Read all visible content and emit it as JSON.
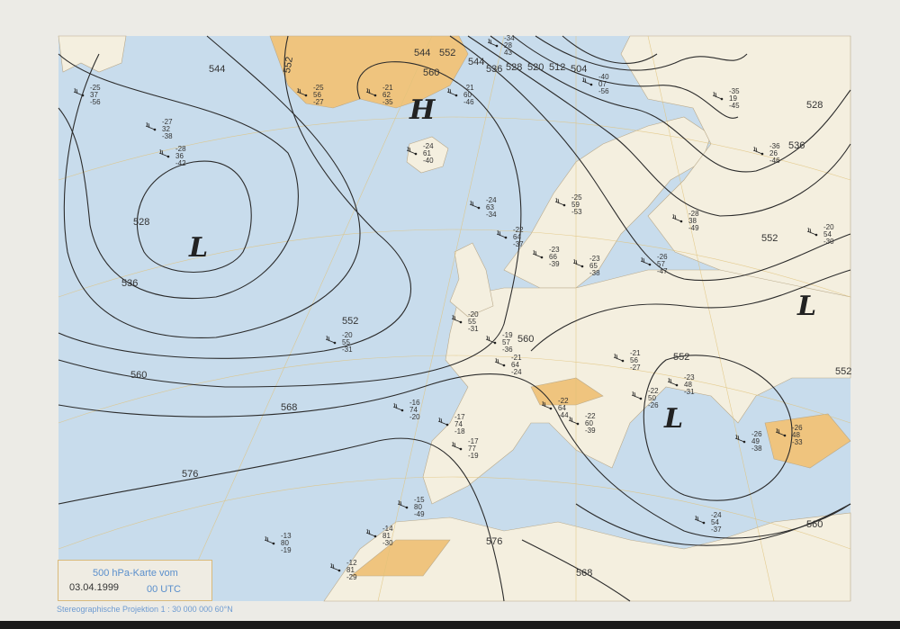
{
  "legend": {
    "title": "500 hPa-Karte vom",
    "date": "03.04.1999",
    "time": "00 UTC"
  },
  "projection": "Stereographische Projektion   1 : 30 000 000  60°N",
  "colors": {
    "sea": "#c8dcec",
    "land": "#f4efdf",
    "highland": "#efc47e",
    "contour": "#2b2b2b",
    "graticule": "#e0c27a"
  },
  "pressure_centers": [
    {
      "label": "H",
      "region": "Greenland"
    },
    {
      "label": "L",
      "region": "North Atlantic"
    },
    {
      "label": "L",
      "region": "Balkans"
    },
    {
      "label": "L",
      "region": "Southern Russia"
    }
  ],
  "contour_labels": [
    "552",
    "544",
    "560",
    "552",
    "544",
    "536",
    "528",
    "520",
    "512",
    "504",
    "528",
    "536",
    "544",
    "552",
    "560",
    "568",
    "576",
    "560",
    "552",
    "568",
    "576",
    "560",
    "552",
    "528",
    "536",
    "552"
  ],
  "stations": [
    {
      "t": "-25",
      "td": "56",
      "h": "-27"
    },
    {
      "t": "-21",
      "td": "62",
      "h": "-35"
    },
    {
      "t": "-21",
      "td": "60",
      "h": "-46"
    },
    {
      "t": "-34",
      "td": "28",
      "h": "43"
    },
    {
      "t": "-40",
      "td": "07",
      "h": "-56"
    },
    {
      "t": "-24",
      "td": "61",
      "h": "-40"
    },
    {
      "t": "-24",
      "td": "63",
      "h": "-34"
    },
    {
      "t": "-22",
      "td": "64",
      "h": "-37"
    },
    {
      "t": "-25",
      "td": "59",
      "h": "-53"
    },
    {
      "t": "-23",
      "td": "66",
      "h": "-39"
    },
    {
      "t": "-23",
      "td": "65",
      "h": "-38"
    },
    {
      "t": "-20",
      "td": "55",
      "h": "-31"
    },
    {
      "t": "-19",
      "td": "57",
      "h": "-36"
    },
    {
      "t": "-21",
      "td": "64",
      "h": "-24"
    },
    {
      "t": "-22",
      "td": "64",
      "h": "-44"
    },
    {
      "t": "-16",
      "td": "74",
      "h": "-20"
    },
    {
      "t": "-17",
      "td": "74",
      "h": "-18"
    },
    {
      "t": "-17",
      "td": "77",
      "h": "-19"
    },
    {
      "t": "-15",
      "td": "80",
      "h": "-49"
    },
    {
      "t": "-13",
      "td": "80",
      "h": "-19"
    },
    {
      "t": "-14",
      "td": "81",
      "h": "-30"
    },
    {
      "t": "-12",
      "td": "81",
      "h": "-29"
    },
    {
      "t": "-23",
      "td": "48",
      "h": "-31"
    },
    {
      "t": "-26",
      "td": "49",
      "h": "-38"
    },
    {
      "t": "-24",
      "td": "54",
      "h": "-37"
    },
    {
      "t": "-21",
      "td": "56",
      "h": "-27"
    },
    {
      "t": "-22",
      "td": "50",
      "h": "-26"
    },
    {
      "t": "-26",
      "td": "48",
      "h": "-33"
    },
    {
      "t": "-20",
      "td": "54",
      "h": "-30"
    },
    {
      "t": "-35",
      "td": "19",
      "h": "-45"
    },
    {
      "t": "-36",
      "td": "26",
      "h": "-46"
    },
    {
      "t": "-26",
      "td": "57",
      "h": "-47"
    },
    {
      "t": "-28",
      "td": "38",
      "h": "-49"
    },
    {
      "t": "-25",
      "td": "37",
      "h": "-56"
    },
    {
      "t": "-27",
      "td": "32",
      "h": "-38"
    },
    {
      "t": "-28",
      "td": "36",
      "h": "-42"
    },
    {
      "t": "-20",
      "td": "55",
      "h": "-31"
    },
    {
      "t": "-22",
      "td": "60",
      "h": "-39"
    }
  ]
}
